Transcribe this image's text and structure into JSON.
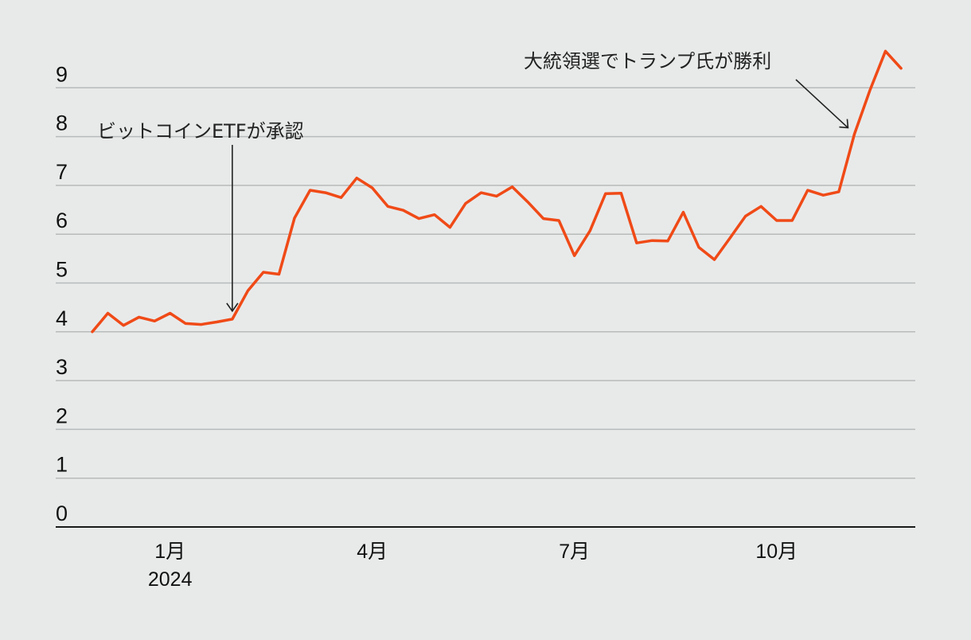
{
  "chart_data": {
    "type": "line",
    "title": "",
    "xlabel": "",
    "ylabel": "",
    "ylim": [
      0,
      9
    ],
    "grid": true,
    "y_ticks": [
      0,
      1,
      2,
      3,
      4,
      5,
      6,
      7,
      8,
      9
    ],
    "x_ticks": [
      {
        "x": 5,
        "label": "1月",
        "sublabel": "2024"
      },
      {
        "x": 18,
        "label": "4月",
        "sublabel": ""
      },
      {
        "x": 31,
        "label": "7月",
        "sublabel": ""
      },
      {
        "x": 44,
        "label": "10月",
        "sublabel": ""
      }
    ],
    "line_color": "#f04a17",
    "series": [
      {
        "name": "",
        "x": [
          0,
          1,
          2,
          3,
          4,
          5,
          6,
          7,
          8,
          9,
          10,
          11,
          12,
          13,
          14,
          15,
          16,
          17,
          18,
          19,
          20,
          21,
          22,
          23,
          24,
          25,
          26,
          27,
          28,
          29,
          30,
          31,
          32,
          33,
          34,
          35,
          36,
          37,
          38,
          39,
          40,
          41,
          42,
          43,
          44,
          45,
          46,
          47,
          48,
          49,
          50,
          51,
          52
        ],
        "y": [
          4.0,
          4.38,
          4.13,
          4.3,
          4.22,
          4.38,
          4.17,
          4.15,
          4.2,
          4.26,
          4.84,
          5.22,
          5.18,
          6.33,
          6.9,
          6.85,
          6.75,
          7.15,
          6.95,
          6.57,
          6.49,
          6.32,
          6.4,
          6.14,
          6.63,
          6.85,
          6.78,
          6.97,
          6.66,
          6.32,
          6.28,
          5.56,
          6.07,
          6.83,
          6.84,
          5.82,
          5.87,
          5.86,
          6.45,
          5.73,
          5.48,
          5.92,
          6.37,
          6.57,
          6.28,
          6.28,
          6.9,
          6.8,
          6.87,
          8.05,
          8.95,
          9.75,
          9.4
        ]
      }
    ],
    "annotations": [
      {
        "text": "ビットコインETFが承認",
        "x": 9,
        "y": 4.26
      },
      {
        "text": "大統領選でトランプ氏が勝利",
        "x": 49,
        "y": 8.05
      }
    ]
  }
}
